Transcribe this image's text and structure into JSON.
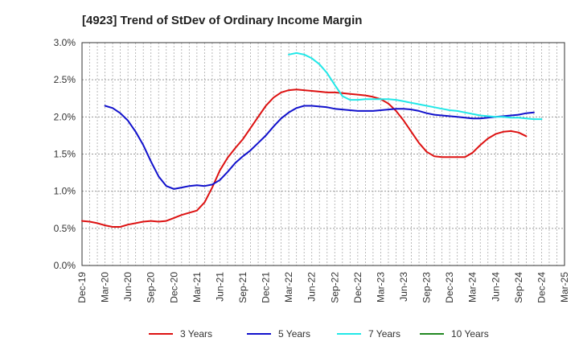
{
  "chart_data": {
    "type": "line",
    "title": "[4923]  Trend of StDev of Ordinary Income Margin",
    "xlabel": "",
    "ylabel": "",
    "x_ticks": [
      "Dec-19",
      "Mar-20",
      "Jun-20",
      "Sep-20",
      "Dec-20",
      "Mar-21",
      "Jun-21",
      "Sep-21",
      "Dec-21",
      "Mar-22",
      "Jun-22",
      "Sep-22",
      "Dec-22",
      "Mar-23",
      "Jun-23",
      "Sep-23",
      "Dec-23",
      "Mar-24",
      "Jun-24",
      "Sep-24",
      "Dec-24",
      "Mar-25"
    ],
    "y_ticks": [
      "0.0%",
      "0.5%",
      "1.0%",
      "1.5%",
      "2.0%",
      "2.5%",
      "3.0%"
    ],
    "ylim": [
      0,
      3.0
    ],
    "grid": true,
    "legend_position": "bottom",
    "series": [
      {
        "name": "3 Years",
        "color": "#dd1111",
        "start_month": 0,
        "values": [
          0.6,
          0.59,
          0.57,
          0.54,
          0.52,
          0.52,
          0.55,
          0.57,
          0.59,
          0.6,
          0.59,
          0.6,
          0.64,
          0.68,
          0.71,
          0.74,
          0.85,
          1.05,
          1.28,
          1.45,
          1.58,
          1.7,
          1.85,
          2.0,
          2.15,
          2.26,
          2.33,
          2.36,
          2.37,
          2.36,
          2.35,
          2.34,
          2.33,
          2.33,
          2.32,
          2.31,
          2.3,
          2.29,
          2.27,
          2.24,
          2.18,
          2.08,
          1.95,
          1.8,
          1.65,
          1.53,
          1.47,
          1.46,
          1.46,
          1.46,
          1.46,
          1.52,
          1.62,
          1.71,
          1.77,
          1.8,
          1.81,
          1.79,
          1.74
        ]
      },
      {
        "name": "5 Years",
        "color": "#1111cc",
        "start_month": 3,
        "values": [
          2.15,
          2.12,
          2.05,
          1.95,
          1.8,
          1.62,
          1.4,
          1.2,
          1.07,
          1.03,
          1.05,
          1.07,
          1.08,
          1.07,
          1.09,
          1.15,
          1.26,
          1.38,
          1.47,
          1.55,
          1.65,
          1.75,
          1.87,
          1.98,
          2.06,
          2.12,
          2.15,
          2.15,
          2.14,
          2.13,
          2.11,
          2.1,
          2.09,
          2.08,
          2.08,
          2.08,
          2.09,
          2.1,
          2.11,
          2.11,
          2.1,
          2.08,
          2.05,
          2.03,
          2.02,
          2.01,
          2.0,
          1.99,
          1.98,
          1.98,
          1.99,
          2.0,
          2.01,
          2.02,
          2.03,
          2.05,
          2.06
        ]
      },
      {
        "name": "7 Years",
        "color": "#22e8e8",
        "start_month": 27,
        "values": [
          2.84,
          2.86,
          2.84,
          2.79,
          2.71,
          2.59,
          2.43,
          2.28,
          2.23,
          2.23,
          2.24,
          2.24,
          2.24,
          2.24,
          2.23,
          2.21,
          2.19,
          2.17,
          2.15,
          2.13,
          2.11,
          2.09,
          2.08,
          2.06,
          2.04,
          2.02,
          2.01,
          2.0,
          2.0,
          1.99,
          1.99,
          1.98,
          1.97,
          1.97
        ]
      },
      {
        "name": "10 Years",
        "color": "#228822",
        "start_month": 0,
        "values": []
      }
    ]
  }
}
